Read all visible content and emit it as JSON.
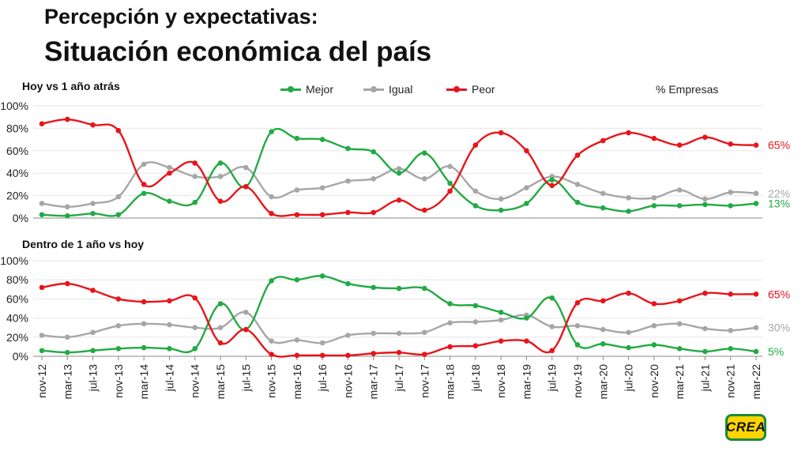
{
  "header": {
    "title": "Percepción y expectativas:",
    "subtitle": "Situación económica del país"
  },
  "legend": {
    "items": [
      {
        "label": "Mejor",
        "color": "#22aa44"
      },
      {
        "label": "Igual",
        "color": "#a6a6a6"
      },
      {
        "label": "Peor",
        "color": "#e8141b"
      }
    ],
    "unit": "% Empresas"
  },
  "logo": {
    "text": "CREA"
  },
  "chart_data": [
    {
      "type": "line",
      "title": "Hoy vs 1 año atrás",
      "ylim": [
        0,
        100
      ],
      "yticks": [
        "0%",
        "20%",
        "40%",
        "60%",
        "80%",
        "100%"
      ],
      "x": [
        "nov-12",
        "mar-13",
        "jul-13",
        "nov-13",
        "mar-14",
        "jul-14",
        "nov-14",
        "mar-15",
        "jul-15",
        "nov-15",
        "mar-16",
        "jul-16",
        "nov-16",
        "mar-17",
        "jul-17",
        "nov-17",
        "mar-18",
        "jul-18",
        "nov-18",
        "mar-19",
        "jul-19",
        "nov-19",
        "mar-20",
        "jul-20",
        "nov-20",
        "mar-21",
        "jul-21",
        "nov-21",
        "mar-22"
      ],
      "series": [
        {
          "name": "Mejor",
          "color": "#22aa44",
          "end_label": "13%",
          "values": [
            3,
            2,
            4,
            3,
            22,
            15,
            14,
            49,
            28,
            77,
            71,
            70,
            62,
            59,
            40,
            58,
            31,
            11,
            7,
            13,
            34,
            14,
            9,
            6,
            11,
            11,
            12,
            11,
            13
          ]
        },
        {
          "name": "Igual",
          "color": "#a6a6a6",
          "end_label": "22%",
          "values": [
            13,
            10,
            13,
            19,
            48,
            45,
            37,
            37,
            45,
            19,
            25,
            27,
            33,
            35,
            44,
            35,
            46,
            24,
            17,
            27,
            37,
            30,
            22,
            18,
            18,
            25,
            17,
            23,
            22
          ]
        },
        {
          "name": "Peor",
          "color": "#e8141b",
          "end_label": "65%",
          "values": [
            84,
            88,
            83,
            78,
            30,
            40,
            49,
            15,
            28,
            4,
            3,
            3,
            5,
            5,
            16,
            7,
            24,
            65,
            76,
            60,
            29,
            56,
            69,
            76,
            71,
            65,
            72,
            66,
            65
          ]
        }
      ]
    },
    {
      "type": "line",
      "title": "Dentro de 1 año vs hoy",
      "ylim": [
        0,
        100
      ],
      "yticks": [
        "0%",
        "20%",
        "40%",
        "60%",
        "80%",
        "100%"
      ],
      "x": [
        "nov-12",
        "mar-13",
        "jul-13",
        "nov-13",
        "mar-14",
        "jul-14",
        "nov-14",
        "mar-15",
        "jul-15",
        "nov-15",
        "mar-16",
        "jul-16",
        "nov-16",
        "mar-17",
        "jul-17",
        "nov-17",
        "mar-18",
        "jul-18",
        "nov-18",
        "mar-19",
        "jul-19",
        "nov-19",
        "mar-20",
        "jul-20",
        "nov-20",
        "mar-21",
        "jul-21",
        "nov-21",
        "mar-22"
      ],
      "series": [
        {
          "name": "Mejor",
          "color": "#22aa44",
          "end_label": "5%",
          "values": [
            6,
            4,
            6,
            8,
            9,
            8,
            8,
            55,
            28,
            79,
            80,
            84,
            76,
            72,
            71,
            71,
            55,
            53,
            46,
            40,
            61,
            12,
            13,
            9,
            12,
            8,
            5,
            8,
            5
          ]
        },
        {
          "name": "Igual",
          "color": "#a6a6a6",
          "end_label": "30%",
          "values": [
            22,
            20,
            25,
            32,
            34,
            33,
            30,
            30,
            46,
            16,
            17,
            14,
            22,
            24,
            24,
            25,
            35,
            36,
            38,
            43,
            31,
            32,
            28,
            25,
            32,
            34,
            29,
            27,
            30
          ]
        },
        {
          "name": "Peor",
          "color": "#e8141b",
          "end_label": "65%",
          "values": [
            72,
            76,
            69,
            60,
            57,
            58,
            61,
            14,
            28,
            2,
            1,
            1,
            1,
            3,
            4,
            2,
            10,
            11,
            16,
            16,
            6,
            56,
            58,
            66,
            55,
            58,
            66,
            65,
            65
          ]
        }
      ]
    }
  ]
}
